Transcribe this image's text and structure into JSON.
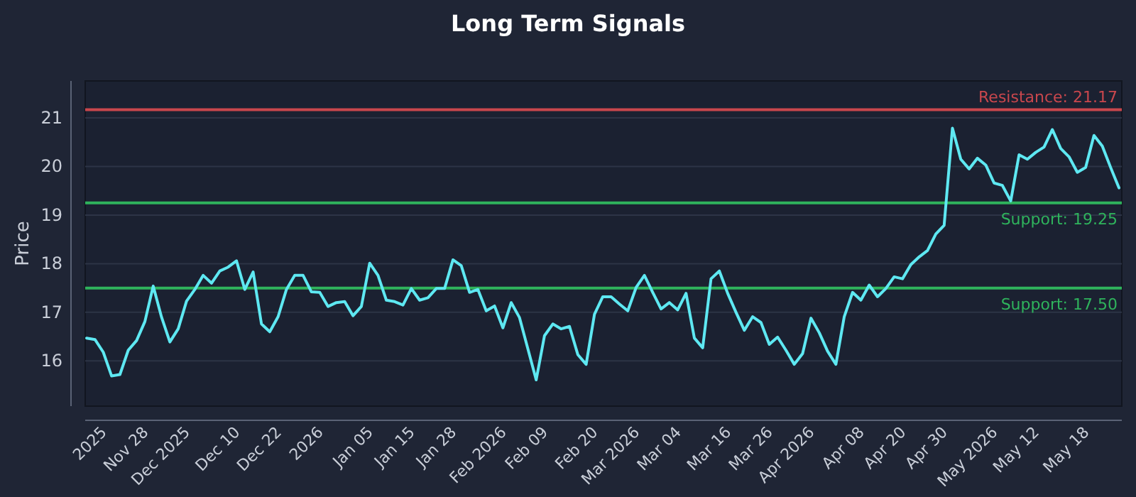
{
  "chart_data": {
    "type": "line",
    "title": "Long Term Signals",
    "ylabel": "Price",
    "categories": [
      null,
      null,
      "2025",
      null,
      null,
      null,
      null,
      "Nov 28",
      null,
      null,
      null,
      null,
      "Dec 2025",
      null,
      null,
      null,
      null,
      null,
      "Dec 10",
      null,
      null,
      null,
      null,
      "Dec 22",
      null,
      null,
      null,
      null,
      "2026",
      null,
      null,
      null,
      null,
      null,
      "Jan 05",
      null,
      null,
      null,
      null,
      "Jan 15",
      null,
      null,
      null,
      null,
      "Jan 28",
      null,
      null,
      null,
      null,
      null,
      "Feb 2026",
      null,
      null,
      null,
      null,
      "Feb 09",
      null,
      null,
      null,
      null,
      null,
      "Feb 20",
      null,
      null,
      null,
      null,
      "Mar 2026",
      null,
      null,
      null,
      null,
      "Mar 04",
      null,
      null,
      null,
      null,
      null,
      "Mar 16",
      null,
      null,
      null,
      null,
      "Mar 26",
      null,
      null,
      null,
      null,
      "Apr 2026",
      null,
      null,
      null,
      null,
      null,
      "Apr 08",
      null,
      null,
      null,
      null,
      "Apr 20",
      null,
      null,
      null,
      null,
      "Apr 30",
      null,
      null,
      null,
      null,
      null,
      "May 2026",
      null,
      null,
      null,
      null,
      "May 12",
      null,
      null,
      null,
      null,
      null,
      "May 18",
      null,
      null,
      null,
      null
    ],
    "series": [
      {
        "color": "#5ee8f2",
        "values": [
          16.47,
          16.44,
          16.18,
          15.69,
          15.72,
          16.22,
          16.42,
          16.81,
          17.54,
          16.9,
          16.39,
          16.66,
          17.23,
          17.47,
          17.76,
          17.6,
          17.85,
          17.93,
          18.06,
          17.47,
          17.83,
          16.76,
          16.6,
          16.91,
          17.47,
          17.76,
          17.76,
          17.42,
          17.41,
          17.12,
          17.2,
          17.22,
          16.93,
          17.12,
          18.01,
          17.76,
          17.25,
          17.22,
          17.15,
          17.49,
          17.25,
          17.3,
          17.49,
          17.49,
          18.08,
          17.96,
          17.41,
          17.47,
          17.03,
          17.13,
          16.68,
          17.2,
          16.89,
          16.25,
          15.61,
          16.52,
          16.76,
          16.66,
          16.71,
          16.13,
          15.93,
          16.96,
          17.32,
          17.32,
          17.17,
          17.03,
          17.51,
          17.76,
          17.41,
          17.07,
          17.2,
          17.05,
          17.39,
          16.47,
          16.27,
          17.69,
          17.85,
          17.39,
          17.0,
          16.63,
          16.91,
          16.79,
          16.34,
          16.49,
          16.22,
          15.93,
          16.15,
          16.88,
          16.58,
          16.2,
          15.93,
          16.91,
          17.41,
          17.25,
          17.56,
          17.32,
          17.49,
          17.73,
          17.69,
          17.98,
          18.14,
          18.27,
          18.61,
          18.79,
          20.79,
          20.15,
          19.95,
          20.17,
          20.03,
          19.66,
          19.61,
          19.29,
          20.24,
          20.15,
          20.29,
          20.4,
          20.76,
          20.37,
          20.2,
          19.88,
          19.98,
          20.64,
          20.42,
          19.98,
          19.56
        ]
      }
    ],
    "ylim": [
      15.07,
      21.76
    ],
    "yticks": [
      16,
      17,
      18,
      19,
      20,
      21
    ],
    "grid": "y",
    "marker": "none",
    "line_style": "solid",
    "ref_lines": [
      {
        "axis": "y",
        "value": 21.17,
        "label": "Resistance: 21.17",
        "color": "#c9474d"
      },
      {
        "axis": "y",
        "value": 19.25,
        "label": "Support: 19.25",
        "color": "#2fb35c"
      },
      {
        "axis": "y",
        "value": 17.5,
        "label": "Support: 17.50",
        "color": "#2fb35c"
      }
    ]
  }
}
